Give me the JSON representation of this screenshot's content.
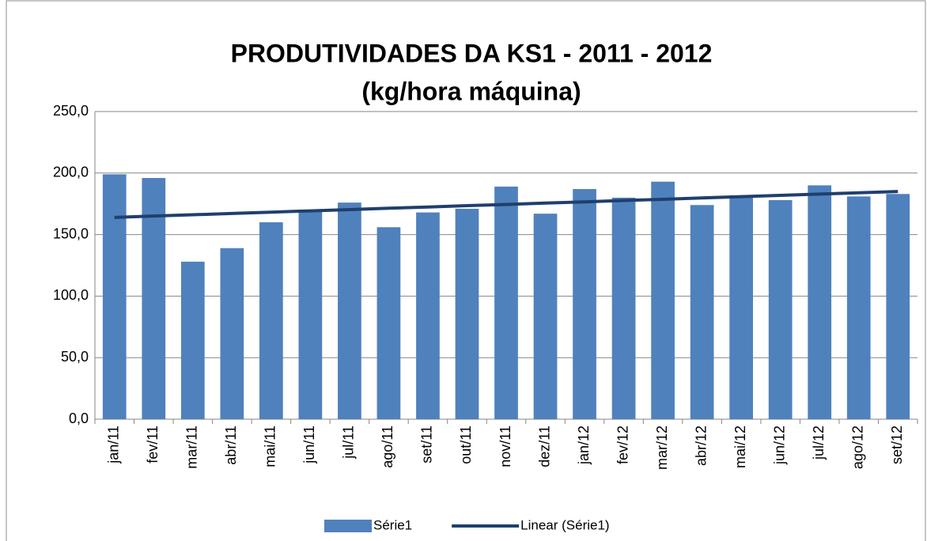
{
  "chart_data": {
    "type": "bar",
    "title": "PRODUTIVIDADES DA KS1 - 2011 - 2012",
    "subtitle": "(kg/hora máquina)",
    "categories": [
      "jan/11",
      "fev/11",
      "mar/11",
      "abr/11",
      "mai/11",
      "jun/11",
      "jul/11",
      "ago/11",
      "set/11",
      "out/11",
      "nov/11",
      "dez/11",
      "jan/12",
      "fev/12",
      "mar/12",
      "abr/12",
      "mai/12",
      "jun/12",
      "jul/12",
      "ago/12",
      "set/12"
    ],
    "series": [
      {
        "name": "Série1",
        "type": "bar",
        "color": "#4f81bd",
        "values": [
          199,
          196,
          128,
          139,
          160,
          170,
          176,
          156,
          168,
          171,
          189,
          167,
          187,
          180,
          193,
          174,
          180,
          178,
          190,
          181,
          183
        ]
      },
      {
        "name": "Linear (Série1)",
        "type": "line",
        "color": "#1f3f6e",
        "values": [
          164,
          165.1,
          166.1,
          167.2,
          168.2,
          169.3,
          170.3,
          171.4,
          172.4,
          173.5,
          174.5,
          175.6,
          176.6,
          177.7,
          178.7,
          179.8,
          180.8,
          181.9,
          182.9,
          184,
          185
        ]
      }
    ],
    "ylim": [
      0,
      250
    ],
    "yticks": [
      {
        "value": 0,
        "label": "0,0"
      },
      {
        "value": 50,
        "label": "50,0"
      },
      {
        "value": 100,
        "label": "100,0"
      },
      {
        "value": 150,
        "label": "150,0"
      },
      {
        "value": 200,
        "label": "200,0"
      },
      {
        "value": 250,
        "label": "250,0"
      }
    ],
    "grid": true,
    "legend": "bottom"
  }
}
